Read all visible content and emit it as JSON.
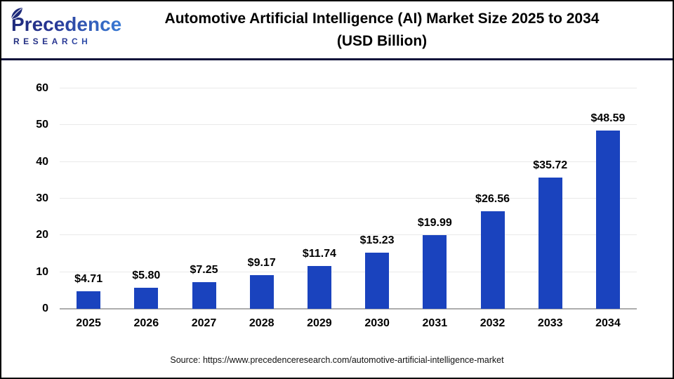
{
  "header": {
    "logo": {
      "name": "Precedence",
      "subtitle": "RESEARCH"
    },
    "title_line1": "Automotive Artificial Intelligence (AI) Market Size 2025 to 2034",
    "title_line2": "(USD Billion)"
  },
  "chart_data": {
    "type": "bar",
    "title": "Automotive Artificial Intelligence (AI) Market Size 2025 to 2034 (USD Billion)",
    "categories": [
      "2025",
      "2026",
      "2027",
      "2028",
      "2029",
      "2030",
      "2031",
      "2032",
      "2033",
      "2034"
    ],
    "values": [
      4.71,
      5.8,
      7.25,
      9.17,
      11.74,
      15.23,
      19.99,
      26.56,
      35.72,
      48.59
    ],
    "data_labels": [
      "$4.71",
      "$5.80",
      "$7.25",
      "$9.17",
      "$11.74",
      "$15.23",
      "$19.99",
      "$26.56",
      "$35.72",
      "$48.59"
    ],
    "xlabel": "",
    "ylabel": "",
    "ylim": [
      0,
      60
    ],
    "yticks": [
      0,
      10,
      20,
      30,
      40,
      50,
      60
    ],
    "grid": true,
    "legend": false,
    "bar_color": "#1A43BE"
  },
  "footer": {
    "source": "Source: https://www.precedenceresearch.com/automotive-artificial-intelligence-market"
  },
  "colors": {
    "bar": "#1A43BE",
    "divider": "#10123A",
    "gridline": "#E9E9E9",
    "baseline": "#ADADAD",
    "logo_navy": "#1F2B7B",
    "logo_blue": "#3A7BD5",
    "frame_border": "#000000"
  }
}
